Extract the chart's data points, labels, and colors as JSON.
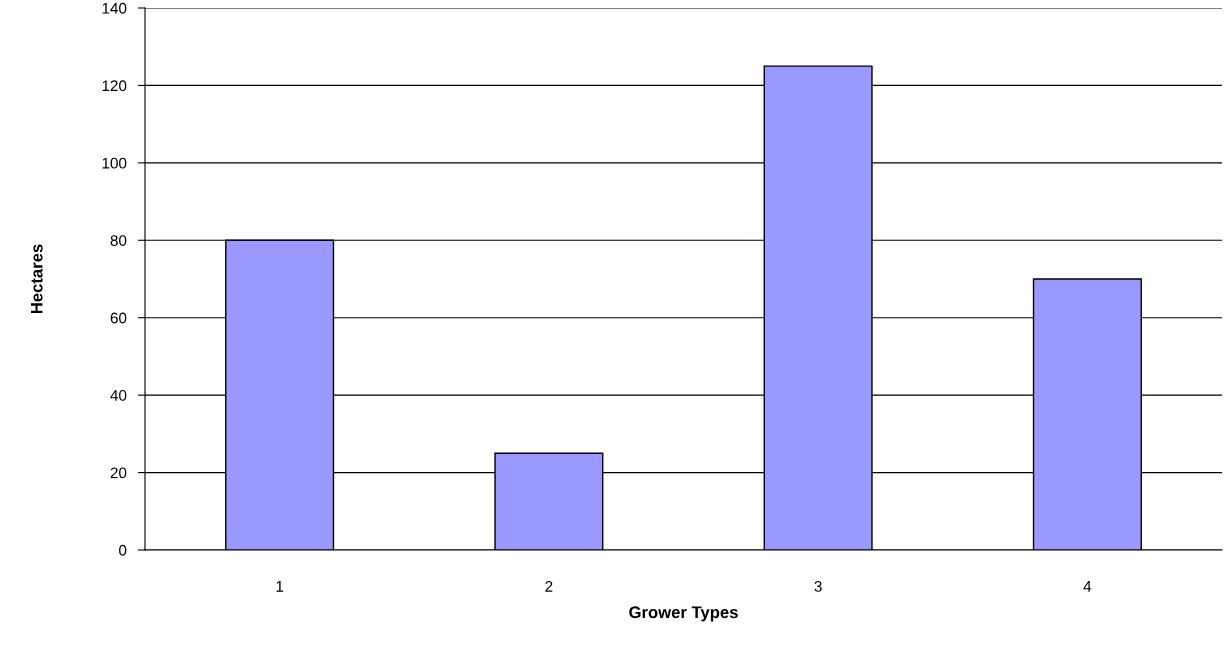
{
  "chart_data": {
    "type": "bar",
    "xlabel": "Grower Types",
    "ylabel": "Hectares",
    "categories": [
      "1",
      "2",
      "3",
      "4"
    ],
    "values": [
      80,
      25,
      125,
      70
    ],
    "color": "#9999ff",
    "ylim": [
      0,
      140
    ],
    "yticks": [
      0,
      20,
      40,
      60,
      80,
      100,
      120,
      140
    ],
    "grid": "y",
    "legend": false
  }
}
